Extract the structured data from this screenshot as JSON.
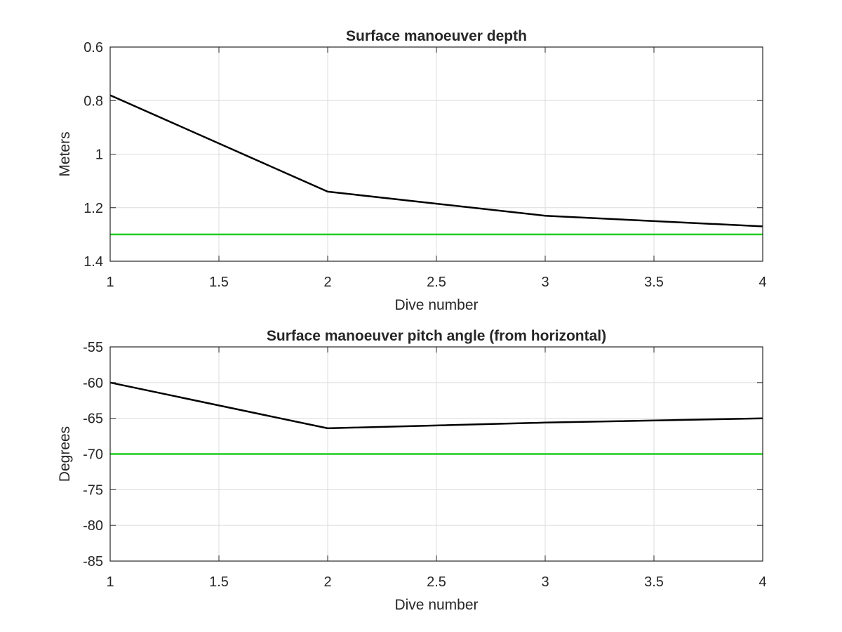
{
  "chart_data": [
    {
      "type": "line",
      "title": "Surface manoeuver depth",
      "xlabel": "Dive number",
      "ylabel": "Meters",
      "xlim": [
        1,
        4
      ],
      "ylim": [
        0.6,
        1.4
      ],
      "y_reversed": true,
      "grid": true,
      "x_ticks": [
        "1",
        "1.5",
        "2",
        "2.5",
        "3",
        "3.5",
        "4"
      ],
      "y_ticks": [
        "0.6",
        "0.8",
        "1",
        "1.2",
        "1.4"
      ],
      "series": [
        {
          "color": "#000000",
          "x": [
            1,
            2,
            3,
            4
          ],
          "y": [
            0.78,
            1.14,
            1.23,
            1.27
          ]
        },
        {
          "color": "#22cc22",
          "x": [
            1,
            4
          ],
          "y": [
            1.3,
            1.3
          ]
        }
      ]
    },
    {
      "type": "line",
      "title": "Surface manoeuver pitch angle (from horizontal)",
      "xlabel": "Dive number",
      "ylabel": "Degrees",
      "xlim": [
        1,
        4
      ],
      "ylim": [
        -85,
        -55
      ],
      "y_reversed": false,
      "grid": true,
      "x_ticks": [
        "1",
        "1.5",
        "2",
        "2.5",
        "3",
        "3.5",
        "4"
      ],
      "y_ticks": [
        "-55",
        "-60",
        "-65",
        "-70",
        "-75",
        "-80",
        "-85"
      ],
      "series": [
        {
          "color": "#000000",
          "x": [
            1,
            2,
            3,
            4
          ],
          "y": [
            -60,
            -66.4,
            -65.6,
            -65
          ]
        },
        {
          "color": "#22cc22",
          "x": [
            1,
            4
          ],
          "y": [
            -70,
            -70
          ]
        }
      ]
    }
  ]
}
